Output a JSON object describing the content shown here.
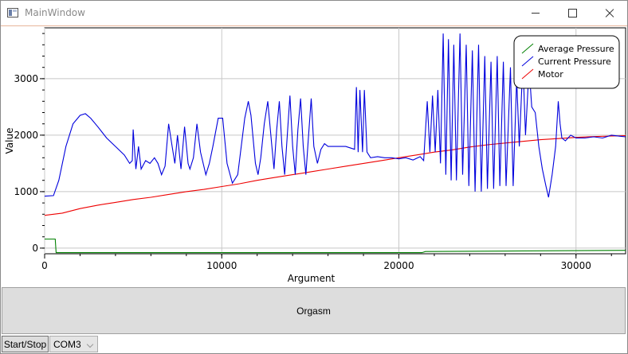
{
  "window": {
    "title": "MainWindow"
  },
  "controls": {
    "orgasm_label": "Orgasm",
    "start_stop_label": "Start/Stop",
    "port_value": "COM3"
  },
  "chart_data": {
    "type": "line",
    "title": "",
    "xlabel": "Argument",
    "ylabel": "Value",
    "xlim": [
      0,
      32800
    ],
    "ylim": [
      -100,
      3900
    ],
    "x_ticks": [
      0,
      10000,
      20000,
      30000
    ],
    "y_ticks": [
      0,
      1000,
      2000,
      3000
    ],
    "grid": true,
    "legend_position": "top-right",
    "series": [
      {
        "name": "Average Pressure",
        "color": "#008000",
        "points": [
          [
            0,
            160
          ],
          [
            600,
            160
          ],
          [
            650,
            -80
          ],
          [
            21300,
            -80
          ],
          [
            21500,
            -60
          ],
          [
            32800,
            -40
          ]
        ]
      },
      {
        "name": "Current Pressure",
        "color": "#0000dd",
        "points": [
          [
            0,
            920
          ],
          [
            500,
            930
          ],
          [
            800,
            1200
          ],
          [
            1200,
            1800
          ],
          [
            1600,
            2200
          ],
          [
            2000,
            2350
          ],
          [
            2300,
            2380
          ],
          [
            2600,
            2300
          ],
          [
            3000,
            2150
          ],
          [
            3500,
            1950
          ],
          [
            4000,
            1800
          ],
          [
            4500,
            1650
          ],
          [
            4800,
            1500
          ],
          [
            4950,
            1550
          ],
          [
            5000,
            2100
          ],
          [
            5150,
            1400
          ],
          [
            5300,
            1800
          ],
          [
            5450,
            1400
          ],
          [
            5700,
            1550
          ],
          [
            5950,
            1500
          ],
          [
            6200,
            1600
          ],
          [
            6400,
            1500
          ],
          [
            6600,
            1300
          ],
          [
            6800,
            1450
          ],
          [
            7000,
            2200
          ],
          [
            7200,
            1800
          ],
          [
            7350,
            1500
          ],
          [
            7500,
            2000
          ],
          [
            7700,
            1400
          ],
          [
            7900,
            2150
          ],
          [
            8100,
            1500
          ],
          [
            8200,
            1400
          ],
          [
            8400,
            1600
          ],
          [
            8600,
            2200
          ],
          [
            8800,
            1700
          ],
          [
            9100,
            1300
          ],
          [
            9300,
            1500
          ],
          [
            9500,
            1800
          ],
          [
            9800,
            2300
          ],
          [
            10050,
            2300
          ],
          [
            10300,
            1500
          ],
          [
            10600,
            1150
          ],
          [
            10900,
            1300
          ],
          [
            11100,
            1800
          ],
          [
            11300,
            2300
          ],
          [
            11500,
            2600
          ],
          [
            11650,
            2350
          ],
          [
            11900,
            1500
          ],
          [
            12050,
            1300
          ],
          [
            12200,
            1600
          ],
          [
            12400,
            2200
          ],
          [
            12600,
            2600
          ],
          [
            12800,
            1900
          ],
          [
            12950,
            1400
          ],
          [
            13100,
            2100
          ],
          [
            13250,
            2600
          ],
          [
            13400,
            1800
          ],
          [
            13550,
            1300
          ],
          [
            13700,
            2000
          ],
          [
            13850,
            2700
          ],
          [
            14000,
            1800
          ],
          [
            14150,
            1300
          ],
          [
            14300,
            2100
          ],
          [
            14450,
            2650
          ],
          [
            14600,
            1800
          ],
          [
            14750,
            1300
          ],
          [
            14900,
            2000
          ],
          [
            15050,
            2650
          ],
          [
            15200,
            1800
          ],
          [
            15400,
            1500
          ],
          [
            15600,
            1750
          ],
          [
            15800,
            1850
          ],
          [
            16000,
            1800
          ],
          [
            16400,
            1800
          ],
          [
            17000,
            1800
          ],
          [
            17500,
            1750
          ],
          [
            17600,
            2850
          ],
          [
            17700,
            1700
          ],
          [
            17800,
            2800
          ],
          [
            17950,
            1700
          ],
          [
            18050,
            2800
          ],
          [
            18200,
            1700
          ],
          [
            18400,
            1600
          ],
          [
            18800,
            1620
          ],
          [
            19200,
            1600
          ],
          [
            19600,
            1600
          ],
          [
            20000,
            1580
          ],
          [
            20400,
            1600
          ],
          [
            20800,
            1560
          ],
          [
            21200,
            1620
          ],
          [
            21400,
            1550
          ],
          [
            21600,
            2600
          ],
          [
            21750,
            1700
          ],
          [
            21900,
            2700
          ],
          [
            22050,
            1700
          ],
          [
            22200,
            2800
          ],
          [
            22350,
            1500
          ],
          [
            22500,
            3800
          ],
          [
            22650,
            1300
          ],
          [
            22800,
            3700
          ],
          [
            22950,
            1200
          ],
          [
            23100,
            3600
          ],
          [
            23250,
            1200
          ],
          [
            23450,
            3800
          ],
          [
            23600,
            1300
          ],
          [
            23800,
            3600
          ],
          [
            23950,
            1100
          ],
          [
            24150,
            3500
          ],
          [
            24300,
            1000
          ],
          [
            24500,
            3600
          ],
          [
            24650,
            1000
          ],
          [
            24850,
            3400
          ],
          [
            25000,
            1050
          ],
          [
            25200,
            3300
          ],
          [
            25350,
            1050
          ],
          [
            25550,
            3400
          ],
          [
            25700,
            1100
          ],
          [
            25900,
            3300
          ],
          [
            26050,
            1100
          ],
          [
            26300,
            3200
          ],
          [
            26450,
            1100
          ],
          [
            26650,
            3000
          ],
          [
            26800,
            1800
          ],
          [
            27000,
            3300
          ],
          [
            27150,
            2000
          ],
          [
            27350,
            3200
          ],
          [
            27500,
            2500
          ],
          [
            27700,
            2400
          ],
          [
            27900,
            1800
          ],
          [
            28100,
            1400
          ],
          [
            28300,
            1100
          ],
          [
            28450,
            900
          ],
          [
            28650,
            1300
          ],
          [
            28850,
            1800
          ],
          [
            29000,
            2600
          ],
          [
            29100,
            2200
          ],
          [
            29200,
            1950
          ],
          [
            29400,
            1900
          ],
          [
            29700,
            2000
          ],
          [
            30000,
            1950
          ],
          [
            30500,
            1950
          ],
          [
            31000,
            1970
          ],
          [
            31500,
            1950
          ],
          [
            32000,
            2000
          ],
          [
            32500,
            1980
          ],
          [
            32800,
            1970
          ]
        ]
      },
      {
        "name": "Motor",
        "color": "#ee0000",
        "points": [
          [
            0,
            580
          ],
          [
            1000,
            620
          ],
          [
            2000,
            700
          ],
          [
            3000,
            760
          ],
          [
            4000,
            810
          ],
          [
            5000,
            860
          ],
          [
            6000,
            900
          ],
          [
            7000,
            950
          ],
          [
            8000,
            1000
          ],
          [
            9000,
            1040
          ],
          [
            10000,
            1090
          ],
          [
            11000,
            1140
          ],
          [
            12000,
            1200
          ],
          [
            13000,
            1250
          ],
          [
            14000,
            1300
          ],
          [
            15000,
            1350
          ],
          [
            16000,
            1400
          ],
          [
            17000,
            1450
          ],
          [
            18000,
            1500
          ],
          [
            19000,
            1550
          ],
          [
            20000,
            1600
          ],
          [
            21000,
            1650
          ],
          [
            22000,
            1700
          ],
          [
            23000,
            1740
          ],
          [
            24000,
            1790
          ],
          [
            25000,
            1830
          ],
          [
            26000,
            1860
          ],
          [
            27000,
            1890
          ],
          [
            28000,
            1920
          ],
          [
            29000,
            1940
          ],
          [
            30000,
            1960
          ],
          [
            31000,
            1975
          ],
          [
            32000,
            1985
          ],
          [
            32800,
            1990
          ]
        ]
      }
    ]
  }
}
